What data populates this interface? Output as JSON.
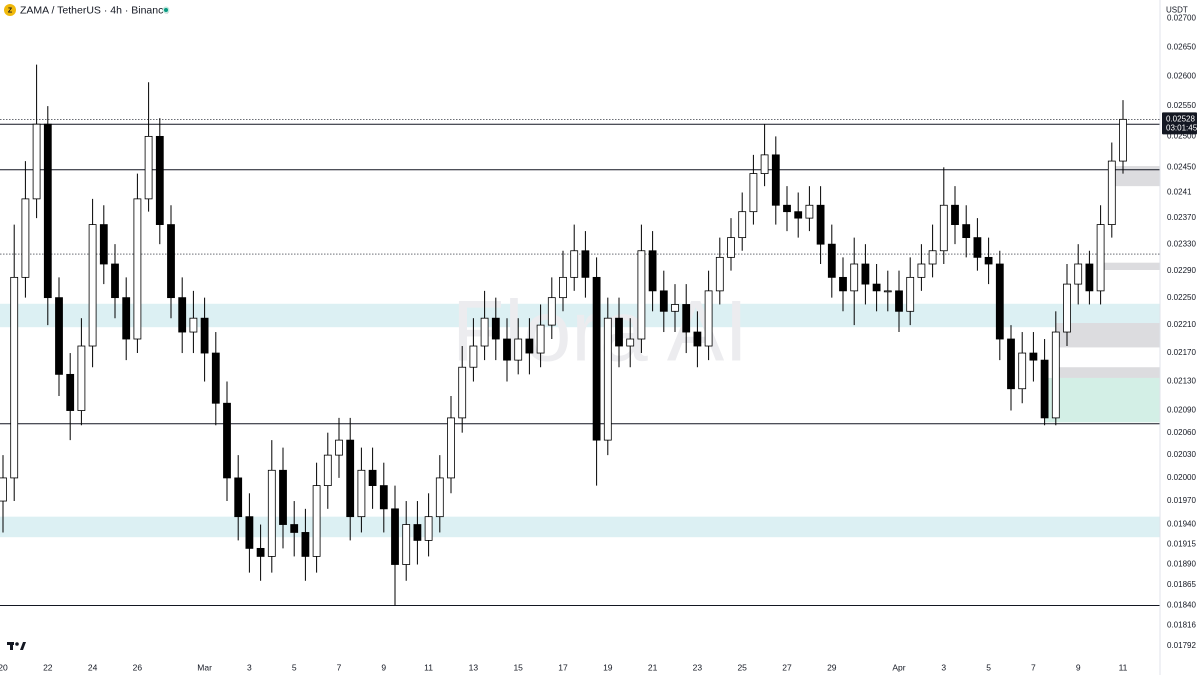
{
  "chart_data": {
    "type": "candlestick",
    "title": "ZAMA / TetherUS · 4h · Binance",
    "symbol_icon": "Z",
    "currency": "USDT",
    "watermark": "Flora AI",
    "log_scale": true,
    "up_color": "#ffffff",
    "down_color": "#000000",
    "wick_color": "#000000",
    "categories": [
      "20",
      null,
      null,
      null,
      "22",
      null,
      null,
      null,
      "24",
      null,
      null,
      null,
      "26",
      null,
      null,
      null,
      null,
      null,
      "Mar",
      null,
      null,
      null,
      "3",
      null,
      null,
      null,
      "5",
      null,
      null,
      null,
      "7",
      null,
      null,
      null,
      "9",
      null,
      null,
      null,
      "11",
      null,
      null,
      null,
      "13",
      null,
      null,
      null,
      "15",
      null,
      null,
      null,
      "17",
      null,
      null,
      null,
      "19",
      null,
      null,
      null,
      "21",
      null,
      null,
      null,
      "23",
      null,
      null,
      null,
      "25",
      null,
      null,
      null,
      "27",
      null,
      null,
      null,
      "29",
      null,
      null,
      null,
      null,
      null,
      "Apr",
      null,
      null,
      null,
      "3",
      null,
      null,
      null,
      "5",
      null,
      null,
      null,
      "7",
      null,
      null,
      null,
      "9",
      null,
      null,
      null,
      "11"
    ],
    "open": [
      0.0197,
      0.02,
      0.0228,
      0.024,
      0.0252,
      0.0225,
      0.0214,
      0.0209,
      0.0218,
      0.0236,
      0.023,
      0.0225,
      0.0219,
      0.024,
      0.025,
      0.0236,
      0.0225,
      0.022,
      0.0222,
      0.0217,
      0.021,
      0.02,
      0.0195,
      0.0191,
      0.019,
      0.0201,
      0.0194,
      0.0193,
      0.019,
      0.0199,
      0.0203,
      0.0205,
      0.0195,
      0.0201,
      0.0199,
      0.0196,
      0.0189,
      0.0194,
      0.0192,
      0.0195,
      0.02,
      0.0208,
      0.0215,
      0.0218,
      0.0222,
      0.0219,
      0.0216,
      0.0219,
      0.0217,
      0.0221,
      0.0225,
      0.0228,
      0.0232,
      0.0228,
      0.0205,
      0.0222,
      0.0218,
      0.0219,
      0.0232,
      0.0226,
      0.0223,
      0.0224,
      0.022,
      0.0218,
      0.0226,
      0.0231,
      0.0234,
      0.0238,
      0.0244,
      0.0247,
      0.0239,
      0.0238,
      0.0237,
      0.0239,
      0.0233,
      0.0228,
      0.0226,
      0.023,
      0.0227,
      0.0226,
      0.0226,
      0.0223,
      0.0228,
      0.023,
      0.0232,
      0.0239,
      0.0236,
      0.0234,
      0.0231,
      0.023,
      0.0219,
      0.0212,
      0.0217,
      0.0216,
      0.0208,
      0.022,
      0.0227,
      0.023,
      0.0226,
      0.0236,
      0.0246
    ],
    "high": [
      0.0203,
      0.0236,
      0.0246,
      0.0262,
      0.0255,
      0.0228,
      0.0217,
      0.0222,
      0.024,
      0.0239,
      0.0233,
      0.0228,
      0.0244,
      0.0259,
      0.0253,
      0.0239,
      0.0228,
      0.0226,
      0.0225,
      0.022,
      0.0213,
      0.0203,
      0.0198,
      0.0194,
      0.0205,
      0.0204,
      0.0197,
      0.0196,
      0.0202,
      0.0206,
      0.0208,
      0.0208,
      0.0204,
      0.0204,
      0.0202,
      0.0199,
      0.0197,
      0.0197,
      0.0198,
      0.0203,
      0.0211,
      0.0218,
      0.0222,
      0.0226,
      0.0225,
      0.0222,
      0.0222,
      0.0222,
      0.0224,
      0.0228,
      0.0232,
      0.0236,
      0.0235,
      0.0231,
      0.0225,
      0.0225,
      0.0222,
      0.0236,
      0.0235,
      0.0229,
      0.0227,
      0.0227,
      0.0223,
      0.0229,
      0.0234,
      0.0237,
      0.0241,
      0.0247,
      0.0252,
      0.025,
      0.0242,
      0.0241,
      0.0242,
      0.0242,
      0.0236,
      0.0231,
      0.0234,
      0.0233,
      0.023,
      0.0229,
      0.0229,
      0.0231,
      0.0233,
      0.0236,
      0.0245,
      0.0242,
      0.0239,
      0.0237,
      0.0234,
      0.0232,
      0.0221,
      0.022,
      0.022,
      0.0219,
      0.0223,
      0.023,
      0.0233,
      0.0232,
      0.0239,
      0.0249,
      0.0256
    ],
    "low": [
      0.0193,
      0.0197,
      0.0225,
      0.0237,
      0.0221,
      0.0211,
      0.0205,
      0.0207,
      0.0215,
      0.0227,
      0.0222,
      0.0216,
      0.0217,
      0.0238,
      0.0233,
      0.0222,
      0.0217,
      0.0217,
      0.0213,
      0.0207,
      0.0197,
      0.0192,
      0.0188,
      0.0187,
      0.0188,
      0.0191,
      0.019,
      0.0187,
      0.0188,
      0.0196,
      0.02,
      0.0192,
      0.0193,
      0.0196,
      0.0193,
      0.0184,
      0.0187,
      0.0189,
      0.019,
      0.0193,
      0.0198,
      0.0206,
      0.0213,
      0.0216,
      0.0216,
      0.0213,
      0.0214,
      0.0214,
      0.0215,
      0.0219,
      0.0223,
      0.0226,
      0.0225,
      0.0199,
      0.0203,
      0.0215,
      0.0215,
      0.0217,
      0.0223,
      0.022,
      0.022,
      0.0217,
      0.0215,
      0.0216,
      0.0224,
      0.0229,
      0.0232,
      0.0236,
      0.0242,
      0.0236,
      0.0235,
      0.0234,
      0.0235,
      0.023,
      0.0225,
      0.0223,
      0.0221,
      0.0224,
      0.0223,
      0.0223,
      0.022,
      0.0221,
      0.0226,
      0.0228,
      0.023,
      0.0233,
      0.0231,
      0.0229,
      0.0227,
      0.0216,
      0.0209,
      0.021,
      0.0213,
      0.0207,
      0.0207,
      0.0218,
      0.0224,
      0.0224,
      0.0224,
      0.0234,
      0.0244
    ],
    "close": [
      0.02,
      0.0228,
      0.024,
      0.0252,
      0.0225,
      0.0214,
      0.0209,
      0.0218,
      0.0236,
      0.023,
      0.0225,
      0.0219,
      0.024,
      0.025,
      0.0236,
      0.0225,
      0.022,
      0.0222,
      0.0217,
      0.021,
      0.02,
      0.0195,
      0.0191,
      0.019,
      0.0201,
      0.0194,
      0.0193,
      0.019,
      0.0199,
      0.0203,
      0.0205,
      0.0195,
      0.0201,
      0.0199,
      0.0196,
      0.0189,
      0.0194,
      0.0192,
      0.0195,
      0.02,
      0.0208,
      0.0215,
      0.0218,
      0.0222,
      0.0219,
      0.0216,
      0.0219,
      0.0217,
      0.0221,
      0.0225,
      0.0228,
      0.0232,
      0.0228,
      0.0205,
      0.0222,
      0.0218,
      0.0219,
      0.0232,
      0.0226,
      0.0223,
      0.0224,
      0.022,
      0.0218,
      0.0226,
      0.0231,
      0.0234,
      0.0238,
      0.0244,
      0.0247,
      0.0239,
      0.0238,
      0.0237,
      0.0239,
      0.0233,
      0.0228,
      0.0226,
      0.023,
      0.0227,
      0.0226,
      0.0226,
      0.0223,
      0.0228,
      0.023,
      0.0232,
      0.0239,
      0.0236,
      0.0234,
      0.0231,
      0.023,
      0.0219,
      0.0212,
      0.0217,
      0.0216,
      0.0208,
      0.022,
      0.0227,
      0.023,
      0.0226,
      0.0236,
      0.0246,
      0.02528
    ],
    "last_price": {
      "value": 0.02528,
      "countdown": "03:01:45"
    },
    "levels": [
      {
        "value": 0.02528,
        "style": "dotted"
      },
      {
        "value": 0.0252,
        "style": "solid"
      },
      {
        "value": 0.02446,
        "style": "solid"
      },
      {
        "value": 0.02315,
        "style": "dotted"
      },
      {
        "value": 0.02072,
        "style": "solid"
      },
      {
        "value": 0.0184,
        "style": "solid"
      }
    ],
    "zones": [
      {
        "low": 0.02207,
        "high": 0.02241,
        "color": "#dcf0f3"
      },
      {
        "low": 0.01924,
        "high": 0.0195,
        "color": "#dcf0f3"
      },
      {
        "low": 0.0242,
        "high": 0.02452,
        "color": "#dcdcdf",
        "start": 99
      },
      {
        "low": 0.02291,
        "high": 0.02302,
        "color": "#dcdcdf",
        "start": 98
      },
      {
        "low": 0.02178,
        "high": 0.02213,
        "color": "#dcdcdf",
        "start": 94
      },
      {
        "low": 0.02135,
        "high": 0.0215,
        "color": "#dcdcdf",
        "start": 94
      },
      {
        "low": 0.02074,
        "high": 0.02135,
        "color": "#d3efe6",
        "start": 93
      }
    ],
    "ylim": [
      0.01778,
      0.02733
    ],
    "yticks": [
      {
        "value": 0.027,
        "label": "0.02700"
      },
      {
        "value": 0.0265,
        "label": "0.02650"
      },
      {
        "value": 0.026,
        "label": "0.02600"
      },
      {
        "value": 0.0255,
        "label": "0.02550"
      },
      {
        "value": 0.025,
        "label": "0.02500"
      },
      {
        "value": 0.0245,
        "label": "0.02450"
      },
      0.0241,
      {
        "value": 0.0237,
        "label": "0.02370"
      },
      {
        "value": 0.0233,
        "label": "0.02330"
      },
      {
        "value": 0.0229,
        "label": "0.02290"
      },
      {
        "value": 0.0225,
        "label": "0.02250"
      },
      {
        "value": 0.0221,
        "label": "0.02210"
      },
      {
        "value": 0.0217,
        "label": "0.02170"
      },
      {
        "value": 0.0213,
        "label": "0.02130"
      },
      {
        "value": 0.0209,
        "label": "0.02090"
      },
      {
        "value": 0.0206,
        "label": "0.02060"
      },
      {
        "value": 0.0203,
        "label": "0.02030"
      },
      {
        "value": 0.02,
        "label": "0.02000"
      },
      {
        "value": 0.0197,
        "label": "0.01970"
      },
      {
        "value": 0.0194,
        "label": "0.01940"
      },
      0.01915,
      {
        "value": 0.0189,
        "label": "0.01890"
      },
      0.01865,
      {
        "value": 0.0184,
        "label": "0.01840"
      },
      0.01816,
      0.01792
    ]
  }
}
